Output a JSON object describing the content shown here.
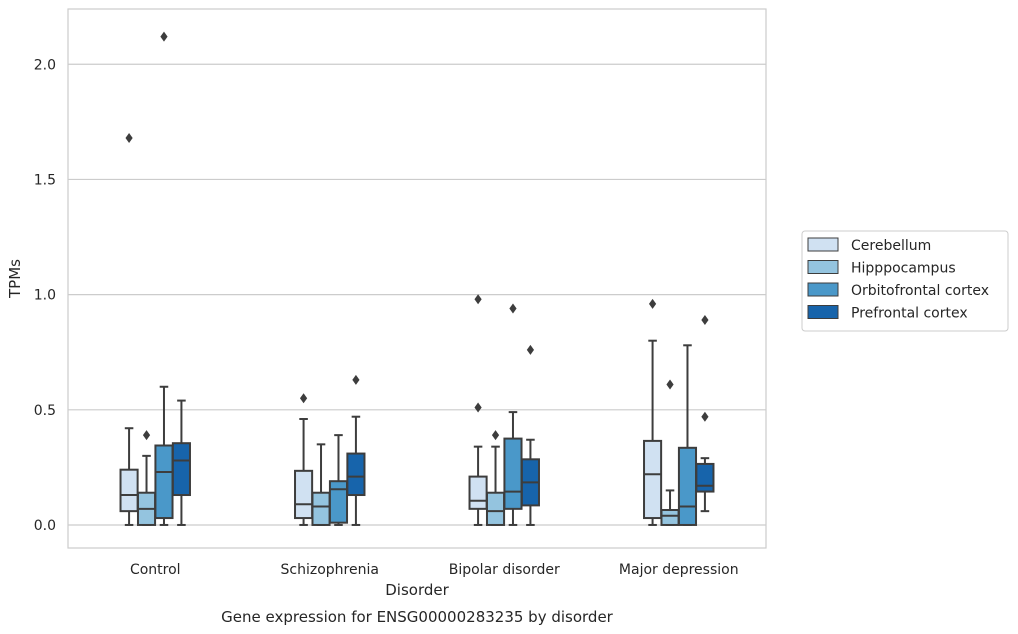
{
  "chart_data": {
    "type": "box",
    "title": "Gene expression for ENSG00000283235 by disorder",
    "xlabel": "Disorder",
    "ylabel": "TPMs",
    "categories": [
      "Control",
      "Schizophrenia",
      "Bipolar disorder",
      "Major depression"
    ],
    "ylim": [
      -0.1,
      2.24
    ],
    "yticks": [
      0.0,
      0.5,
      1.0,
      1.5,
      2.0
    ],
    "ytick_labels": [
      "0.0",
      "0.5",
      "1.0",
      "1.5",
      "2.0"
    ],
    "grid": "horizontal",
    "legend_position": "right",
    "series": [
      {
        "name": "Cerebellum",
        "color": "#d0e1f2",
        "boxes": [
          {
            "whisker_low": 0.0,
            "q1": 0.06,
            "median": 0.13,
            "q3": 0.24,
            "whisker_high": 0.42,
            "outliers": [
              1.68
            ]
          },
          {
            "whisker_low": 0.0,
            "q1": 0.03,
            "median": 0.09,
            "q3": 0.235,
            "whisker_high": 0.46,
            "outliers": [
              0.55
            ]
          },
          {
            "whisker_low": 0.0,
            "q1": 0.07,
            "median": 0.105,
            "q3": 0.21,
            "whisker_high": 0.34,
            "outliers": [
              0.51,
              0.98
            ]
          },
          {
            "whisker_low": 0.0,
            "q1": 0.03,
            "median": 0.22,
            "q3": 0.365,
            "whisker_high": 0.8,
            "outliers": [
              0.96
            ]
          }
        ]
      },
      {
        "name": "Hipppocampus",
        "color": "#94c4df",
        "boxes": [
          {
            "whisker_low": 0.0,
            "q1": 0.0,
            "median": 0.07,
            "q3": 0.14,
            "whisker_high": 0.3,
            "outliers": [
              0.39
            ]
          },
          {
            "whisker_low": 0.0,
            "q1": 0.0,
            "median": 0.08,
            "q3": 0.14,
            "whisker_high": 0.35,
            "outliers": []
          },
          {
            "whisker_low": 0.0,
            "q1": 0.0,
            "median": 0.06,
            "q3": 0.14,
            "whisker_high": 0.34,
            "outliers": [
              0.39
            ]
          },
          {
            "whisker_low": 0.0,
            "q1": 0.0,
            "median": 0.04,
            "q3": 0.065,
            "whisker_high": 0.15,
            "outliers": [
              0.61
            ]
          }
        ]
      },
      {
        "name": "Orbitofrontal cortex",
        "color": "#4a98c9",
        "boxes": [
          {
            "whisker_low": 0.0,
            "q1": 0.03,
            "median": 0.23,
            "q3": 0.345,
            "whisker_high": 0.6,
            "outliers": [
              2.12
            ]
          },
          {
            "whisker_low": 0.0,
            "q1": 0.01,
            "median": 0.155,
            "q3": 0.19,
            "whisker_high": 0.39,
            "outliers": []
          },
          {
            "whisker_low": 0.0,
            "q1": 0.07,
            "median": 0.145,
            "q3": 0.375,
            "whisker_high": 0.49,
            "outliers": [
              0.94
            ]
          },
          {
            "whisker_low": 0.0,
            "q1": 0.0,
            "median": 0.08,
            "q3": 0.335,
            "whisker_high": 0.78,
            "outliers": []
          }
        ]
      },
      {
        "name": "Prefrontal cortex",
        "color": "#1764ab",
        "boxes": [
          {
            "whisker_low": 0.0,
            "q1": 0.13,
            "median": 0.28,
            "q3": 0.355,
            "whisker_high": 0.54,
            "outliers": []
          },
          {
            "whisker_low": 0.0,
            "q1": 0.13,
            "median": 0.21,
            "q3": 0.31,
            "whisker_high": 0.47,
            "outliers": [
              0.63
            ]
          },
          {
            "whisker_low": 0.0,
            "q1": 0.085,
            "median": 0.185,
            "q3": 0.285,
            "whisker_high": 0.37,
            "outliers": [
              0.76
            ]
          },
          {
            "whisker_low": 0.06,
            "q1": 0.145,
            "median": 0.17,
            "q3": 0.265,
            "whisker_high": 0.29,
            "outliers": [
              0.47,
              0.89
            ]
          }
        ]
      }
    ]
  }
}
